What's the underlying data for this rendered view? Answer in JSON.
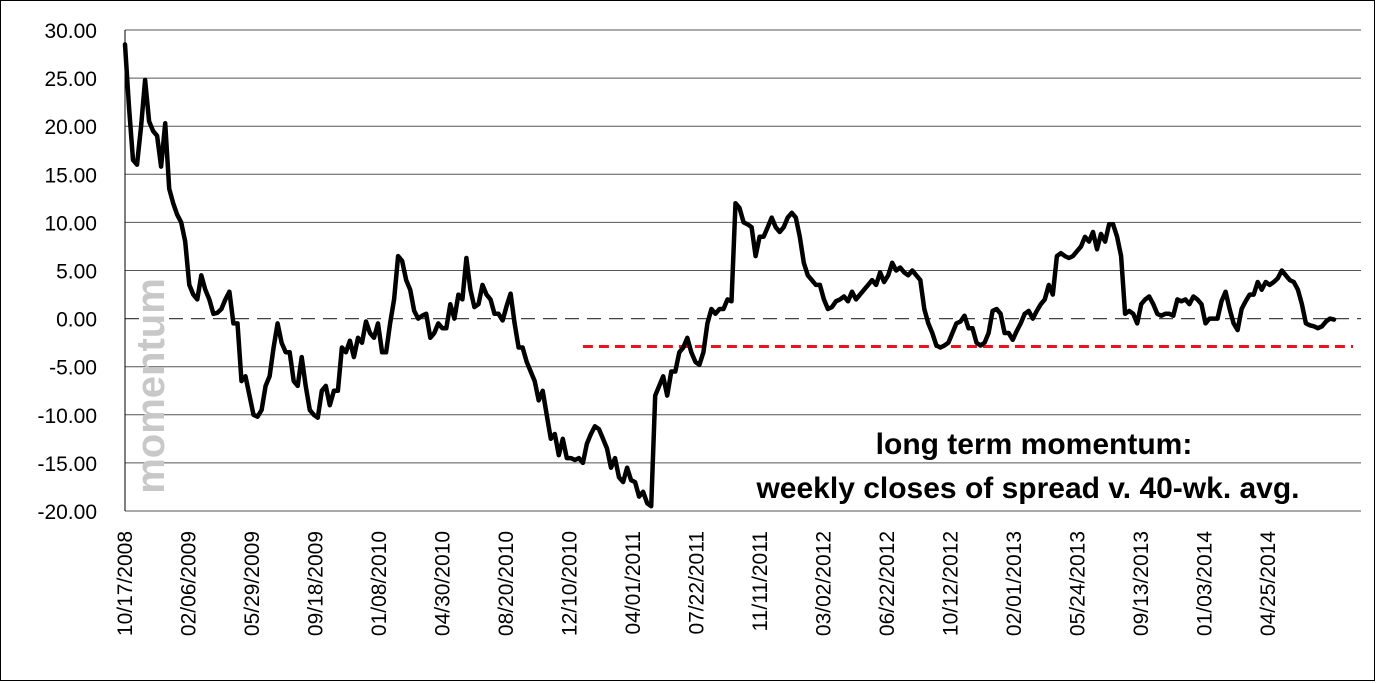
{
  "chart_data": {
    "type": "line",
    "title": "",
    "xlabel": "",
    "ylabel": "",
    "ylim": [
      -20,
      30
    ],
    "yticks": [
      "30.00",
      "25.00",
      "20.00",
      "15.00",
      "10.00",
      "5.00",
      "0.00",
      "-5.00",
      "-10.00",
      "-15.00",
      "-20.00"
    ],
    "xticks": [
      "10/17/2008",
      "02/06/2009",
      "05/29/2009",
      "09/18/2009",
      "01/08/2010",
      "04/30/2010",
      "08/20/2010",
      "12/10/2010",
      "04/01/2011",
      "07/22/2011",
      "11/11/2011",
      "03/02/2012",
      "06/22/2012",
      "10/12/2012",
      "02/01/2013",
      "05/24/2013",
      "09/13/2013",
      "01/03/2014",
      "04/25/2014"
    ],
    "grid": true,
    "watermark": "momentum",
    "annotation": [
      "long term momentum:",
      "weekly closes of spread v. 40-wk. avg."
    ],
    "reference_lines": [
      {
        "value": 0,
        "style": "dashed",
        "color": "#444444"
      },
      {
        "value": -2.9,
        "style": "dashed",
        "color": "#e8141e",
        "x_start_week": 114
      }
    ],
    "series": [
      {
        "color": "#000000",
        "x_unit": "weeks since 10/17/2008",
        "points": [
          [
            0,
            28.5
          ],
          [
            1,
            22
          ],
          [
            2,
            16.5
          ],
          [
            3,
            16
          ],
          [
            4,
            20
          ],
          [
            5,
            24.8
          ],
          [
            6,
            20.5
          ],
          [
            7,
            19.5
          ],
          [
            8,
            19
          ],
          [
            9,
            15.8
          ],
          [
            10,
            20.3
          ],
          [
            11,
            13.5
          ],
          [
            12,
            12
          ],
          [
            13,
            10.8
          ],
          [
            14,
            10
          ],
          [
            15,
            8
          ],
          [
            16,
            3.5
          ],
          [
            17,
            2.5
          ],
          [
            18,
            2
          ],
          [
            19,
            4.5
          ],
          [
            20,
            3
          ],
          [
            21,
            2
          ],
          [
            22,
            0.5
          ],
          [
            23,
            0.6
          ],
          [
            24,
            1
          ],
          [
            25,
            2
          ],
          [
            26,
            2.8
          ],
          [
            27,
            -0.5
          ],
          [
            28,
            -0.5
          ],
          [
            29,
            -6.5
          ],
          [
            30,
            -6
          ],
          [
            31,
            -8
          ],
          [
            32,
            -10
          ],
          [
            33,
            -10.2
          ],
          [
            34,
            -9.5
          ],
          [
            35,
            -7
          ],
          [
            36,
            -6
          ],
          [
            37,
            -3
          ],
          [
            38,
            -0.5
          ],
          [
            39,
            -2.5
          ],
          [
            40,
            -3.5
          ],
          [
            41,
            -3.5
          ],
          [
            42,
            -6.5
          ],
          [
            43,
            -7
          ],
          [
            44,
            -4
          ],
          [
            45,
            -7
          ],
          [
            46,
            -9.5
          ],
          [
            47,
            -10
          ],
          [
            48,
            -10.3
          ],
          [
            49,
            -7.5
          ],
          [
            50,
            -7
          ],
          [
            51,
            -9
          ],
          [
            52,
            -7.5
          ],
          [
            53,
            -7.5
          ],
          [
            54,
            -3
          ],
          [
            55,
            -3.5
          ],
          [
            56,
            -2.3
          ],
          [
            57,
            -4
          ],
          [
            58,
            -2
          ],
          [
            59,
            -2.5
          ],
          [
            60,
            -0.3
          ],
          [
            61,
            -1.5
          ],
          [
            62,
            -2
          ],
          [
            63,
            -0.5
          ],
          [
            64,
            -3.5
          ],
          [
            65,
            -3.5
          ],
          [
            66,
            -0.5
          ],
          [
            67,
            2
          ],
          [
            68,
            6.5
          ],
          [
            69,
            6
          ],
          [
            70,
            4
          ],
          [
            71,
            3
          ],
          [
            72,
            0.8
          ],
          [
            73,
            0
          ],
          [
            74,
            0.3
          ],
          [
            75,
            0.5
          ],
          [
            76,
            -2
          ],
          [
            77,
            -1.5
          ],
          [
            78,
            -0.5
          ],
          [
            79,
            -1
          ],
          [
            80,
            -1
          ],
          [
            81,
            1.5
          ],
          [
            82,
            0
          ],
          [
            83,
            2.5
          ],
          [
            84,
            2
          ],
          [
            85,
            6.3
          ],
          [
            86,
            3
          ],
          [
            87,
            1.2
          ],
          [
            88,
            1.5
          ],
          [
            89,
            3.5
          ],
          [
            90,
            2.5
          ],
          [
            91,
            2
          ],
          [
            92,
            0.5
          ],
          [
            93,
            0.5
          ],
          [
            94,
            -0.2
          ],
          [
            95,
            1.3
          ],
          [
            96,
            2.6
          ],
          [
            97,
            -0.5
          ],
          [
            98,
            -3
          ],
          [
            99,
            -3
          ],
          [
            100,
            -4.5
          ],
          [
            101,
            -5.5
          ],
          [
            102,
            -6.5
          ],
          [
            103,
            -8.5
          ],
          [
            104,
            -7.5
          ],
          [
            105,
            -10
          ],
          [
            106,
            -12.5
          ],
          [
            107,
            -12
          ],
          [
            108,
            -14.2
          ],
          [
            109,
            -12.5
          ],
          [
            110,
            -14.5
          ],
          [
            111,
            -14.5
          ],
          [
            112,
            -14.7
          ],
          [
            113,
            -14.5
          ],
          [
            114,
            -15
          ],
          [
            115,
            -13
          ],
          [
            116,
            -12
          ],
          [
            117,
            -11.2
          ],
          [
            118,
            -11.5
          ],
          [
            119,
            -12.5
          ],
          [
            120,
            -13.5
          ],
          [
            121,
            -15.5
          ],
          [
            122,
            -14.5
          ],
          [
            123,
            -16.5
          ],
          [
            124,
            -17
          ],
          [
            125,
            -15.5
          ],
          [
            126,
            -16.8
          ],
          [
            127,
            -17
          ],
          [
            128,
            -18.5
          ],
          [
            129,
            -18
          ],
          [
            130,
            -19.2
          ],
          [
            131,
            -19.5
          ],
          [
            132,
            -8
          ],
          [
            133,
            -7
          ],
          [
            134,
            -6
          ],
          [
            135,
            -8
          ],
          [
            136,
            -5.5
          ],
          [
            137,
            -5.5
          ],
          [
            138,
            -3.5
          ],
          [
            139,
            -3
          ],
          [
            140,
            -2
          ],
          [
            141,
            -3.5
          ],
          [
            142,
            -4.5
          ],
          [
            143,
            -4.8
          ],
          [
            144,
            -3.5
          ],
          [
            145,
            -0.5
          ],
          [
            146,
            1
          ],
          [
            147,
            0.5
          ],
          [
            148,
            1
          ],
          [
            149,
            1
          ],
          [
            150,
            2
          ],
          [
            151,
            1.8
          ],
          [
            152,
            12
          ],
          [
            153,
            11.5
          ],
          [
            154,
            10
          ],
          [
            155,
            9.8
          ],
          [
            156,
            9.5
          ],
          [
            157,
            6.5
          ],
          [
            158,
            8.5
          ],
          [
            159,
            8.5
          ],
          [
            160,
            9.5
          ],
          [
            161,
            10.5
          ],
          [
            162,
            9.5
          ],
          [
            163,
            9
          ],
          [
            164,
            9.5
          ],
          [
            165,
            10.5
          ],
          [
            166,
            11
          ],
          [
            167,
            10.5
          ],
          [
            168,
            8.5
          ],
          [
            169,
            5.8
          ],
          [
            170,
            4.5
          ],
          [
            171,
            4
          ],
          [
            172,
            3.5
          ],
          [
            173,
            3.5
          ],
          [
            174,
            2
          ],
          [
            175,
            1
          ],
          [
            176,
            1.2
          ],
          [
            177,
            1.8
          ],
          [
            178,
            2
          ],
          [
            179,
            2.3
          ],
          [
            180,
            1.8
          ],
          [
            181,
            2.8
          ],
          [
            182,
            2
          ],
          [
            183,
            2.5
          ],
          [
            184,
            3
          ],
          [
            185,
            3.5
          ],
          [
            186,
            4
          ],
          [
            187,
            3.5
          ],
          [
            188,
            4.8
          ],
          [
            189,
            3.8
          ],
          [
            190,
            4.5
          ],
          [
            191,
            5.8
          ],
          [
            192,
            5
          ],
          [
            193,
            5.3
          ],
          [
            194,
            4.8
          ],
          [
            195,
            4.5
          ],
          [
            196,
            5
          ],
          [
            197,
            4.5
          ],
          [
            198,
            4
          ],
          [
            199,
            1
          ],
          [
            200,
            -0.5
          ],
          [
            201,
            -1.5
          ],
          [
            202,
            -2.8
          ],
          [
            203,
            -3
          ],
          [
            204,
            -2.8
          ],
          [
            205,
            -2.5
          ],
          [
            206,
            -1.5
          ],
          [
            207,
            -0.5
          ],
          [
            208,
            -0.3
          ],
          [
            209,
            0.3
          ],
          [
            210,
            -1
          ],
          [
            211,
            -1
          ],
          [
            212,
            -2.5
          ],
          [
            213,
            -2.8
          ],
          [
            214,
            -2.5
          ],
          [
            215,
            -1.5
          ],
          [
            216,
            0.8
          ],
          [
            217,
            1
          ],
          [
            218,
            0.5
          ],
          [
            219,
            -1.5
          ],
          [
            220,
            -1.5
          ],
          [
            221,
            -2.2
          ],
          [
            222,
            -1.3
          ],
          [
            223,
            -0.5
          ],
          [
            224,
            0.5
          ],
          [
            225,
            0.8
          ],
          [
            226,
            0
          ],
          [
            227,
            0.8
          ],
          [
            228,
            1.5
          ],
          [
            229,
            2
          ],
          [
            230,
            3.5
          ],
          [
            231,
            2.5
          ],
          [
            232,
            6.5
          ],
          [
            233,
            6.8
          ],
          [
            234,
            6.5
          ],
          [
            235,
            6.3
          ],
          [
            236,
            6.5
          ],
          [
            237,
            7
          ],
          [
            238,
            7.5
          ],
          [
            239,
            8.5
          ],
          [
            240,
            8
          ],
          [
            241,
            9
          ],
          [
            242,
            7.2
          ],
          [
            243,
            8.8
          ],
          [
            244,
            8
          ],
          [
            245,
            9.8
          ],
          [
            246,
            9.8
          ],
          [
            247,
            8.5
          ],
          [
            248,
            6.5
          ],
          [
            249,
            0.5
          ],
          [
            250,
            0.8
          ],
          [
            251,
            0.5
          ],
          [
            252,
            -0.5
          ],
          [
            253,
            1.5
          ],
          [
            254,
            2
          ],
          [
            255,
            2.3
          ],
          [
            256,
            1.5
          ],
          [
            257,
            0.5
          ],
          [
            258,
            0.3
          ],
          [
            259,
            0.5
          ],
          [
            260,
            0.5
          ],
          [
            261,
            0.3
          ],
          [
            262,
            2
          ],
          [
            263,
            1.8
          ],
          [
            264,
            2
          ],
          [
            265,
            1.5
          ],
          [
            266,
            2.3
          ],
          [
            267,
            2
          ],
          [
            268,
            1.5
          ],
          [
            269,
            -0.5
          ],
          [
            270,
            0
          ],
          [
            271,
            0
          ],
          [
            272,
            0
          ],
          [
            273,
            1.8
          ],
          [
            274,
            2.8
          ],
          [
            275,
            1
          ],
          [
            276,
            -0.5
          ],
          [
            277,
            -1.2
          ],
          [
            278,
            1
          ],
          [
            279,
            1.8
          ],
          [
            280,
            2.5
          ],
          [
            281,
            2.5
          ],
          [
            282,
            3.8
          ],
          [
            283,
            3
          ],
          [
            284,
            3.8
          ],
          [
            285,
            3.5
          ],
          [
            286,
            3.8
          ],
          [
            287,
            4.2
          ],
          [
            288,
            5
          ],
          [
            289,
            4.5
          ],
          [
            290,
            4
          ],
          [
            291,
            3.8
          ],
          [
            292,
            3
          ],
          [
            293,
            1.5
          ],
          [
            294,
            -0.5
          ],
          [
            295,
            -0.7
          ],
          [
            296,
            -0.8
          ],
          [
            297,
            -1
          ],
          [
            298,
            -0.8
          ],
          [
            299,
            -0.3
          ],
          [
            300,
            0
          ],
          [
            301,
            -0.1
          ]
        ]
      }
    ]
  }
}
